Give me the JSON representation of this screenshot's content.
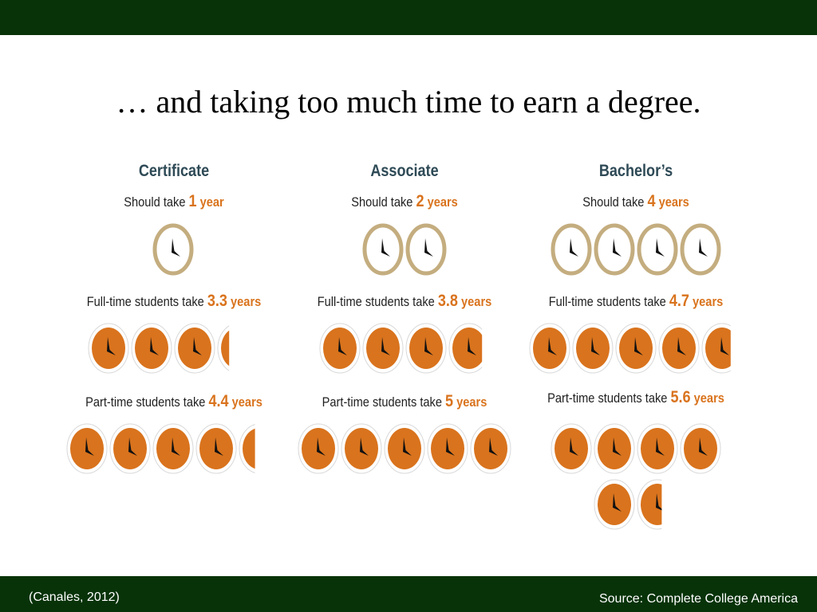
{
  "slide": {
    "title": "… and taking too much time to earn a degree.",
    "citation": "(Canales, 2012)",
    "source": "Source: Complete College America"
  },
  "colors": {
    "bar": "#083309",
    "accent_orange": "#d9731d",
    "clock_ring_tan": "#c4ad7f",
    "heading_slate": "#2e4a56"
  },
  "columns": [
    {
      "name": "Certificate",
      "should": {
        "prefix": "Should take ",
        "number": "1",
        "unit": " year",
        "value": 1
      },
      "full_time": {
        "prefix": "Full-time students take ",
        "number": "3.3",
        "unit": " years",
        "value": 3.3
      },
      "part_time": {
        "prefix": "Part-time students take ",
        "number": "4.4",
        "unit": " years",
        "value": 4.4
      }
    },
    {
      "name": "Associate",
      "should": {
        "prefix": "Should take ",
        "number": "2",
        "unit": " years",
        "value": 2
      },
      "full_time": {
        "prefix": "Full-time students take ",
        "number": "3.8",
        "unit": " years",
        "value": 3.8
      },
      "part_time": {
        "prefix": "Part-time students take ",
        "number": "5",
        "unit": " years",
        "value": 5
      }
    },
    {
      "name": "Bachelor’s",
      "should": {
        "prefix": "Should take ",
        "number": "4",
        "unit": " years",
        "value": 4
      },
      "full_time": {
        "prefix": "Full-time students take ",
        "number": "4.7",
        "unit": " years",
        "value": 4.7
      },
      "part_time": {
        "prefix": "Part-time students take ",
        "number": "5.6",
        "unit": " years",
        "value": 5.6
      }
    }
  ]
}
